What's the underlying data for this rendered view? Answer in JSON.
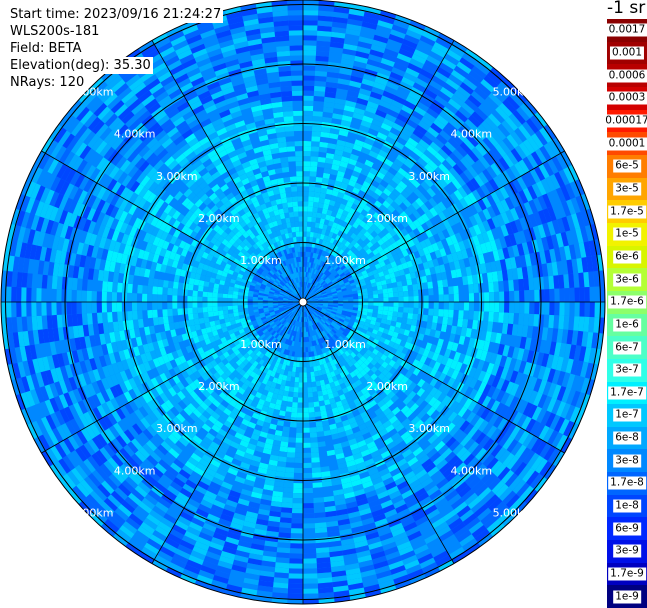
{
  "header": {
    "start_time": "Start time: 2023/09/16 21:24:27",
    "instrument": "WLS200s-181",
    "field": "Field: BETA",
    "elevation": "Elevation(deg): 35.30",
    "nrays": "NRays: 120"
  },
  "ppi": {
    "range_ring_labels": [
      "1.00km",
      "2.00km",
      "3.00km",
      "4.00km",
      "5.00km"
    ],
    "spoke_count": 12,
    "ring_color": "#000000"
  },
  "colorbar": {
    "unit_title": "-1 sr",
    "entries": [
      {
        "label": "0.0017",
        "color": "#8b0000"
      },
      {
        "label": "0.001",
        "color": "#a00000"
      },
      {
        "label": "0.0006",
        "color": "#b80000"
      },
      {
        "label": "0.0003",
        "color": "#d40000"
      },
      {
        "label": "0.00017",
        "color": "#ff1a00"
      },
      {
        "label": "0.0001",
        "color": "#ff4a00"
      },
      {
        "label": "6e-5",
        "color": "#ff7d00"
      },
      {
        "label": "3e-5",
        "color": "#ffa500"
      },
      {
        "label": "1.7e-5",
        "color": "#ffcc00"
      },
      {
        "label": "1e-5",
        "color": "#f2f200"
      },
      {
        "label": "6e-6",
        "color": "#d8f500"
      },
      {
        "label": "3e-6",
        "color": "#b4ff36"
      },
      {
        "label": "1.7e-6",
        "color": "#8cff6a"
      },
      {
        "label": "1e-6",
        "color": "#66ffa0"
      },
      {
        "label": "6e-7",
        "color": "#4cffc8"
      },
      {
        "label": "3e-7",
        "color": "#30ffe8"
      },
      {
        "label": "1.7e-7",
        "color": "#00f0ff"
      },
      {
        "label": "1e-7",
        "color": "#00c8ff"
      },
      {
        "label": "6e-8",
        "color": "#00a8ff"
      },
      {
        "label": "3e-8",
        "color": "#0088ff"
      },
      {
        "label": "1.7e-8",
        "color": "#0066ff"
      },
      {
        "label": "1e-8",
        "color": "#0046ff"
      },
      {
        "label": "6e-9",
        "color": "#0028ff"
      },
      {
        "label": "3e-9",
        "color": "#0010e8"
      },
      {
        "label": "1.7e-9",
        "color": "#0000c0"
      },
      {
        "label": "1e-9",
        "color": "#000080"
      }
    ]
  },
  "field_colors": {
    "outer": [
      "#0066ff",
      "#0088ff",
      "#00a8ff",
      "#00c8ff",
      "#0046ff"
    ],
    "middle": [
      "#00a8ff",
      "#00c8ff",
      "#0088ff",
      "#00f0ff"
    ],
    "inner": [
      "#00c8ff",
      "#00f0ff",
      "#00a8ff"
    ],
    "core": [
      "#0088ff",
      "#0066ff",
      "#00a8ff"
    ]
  }
}
